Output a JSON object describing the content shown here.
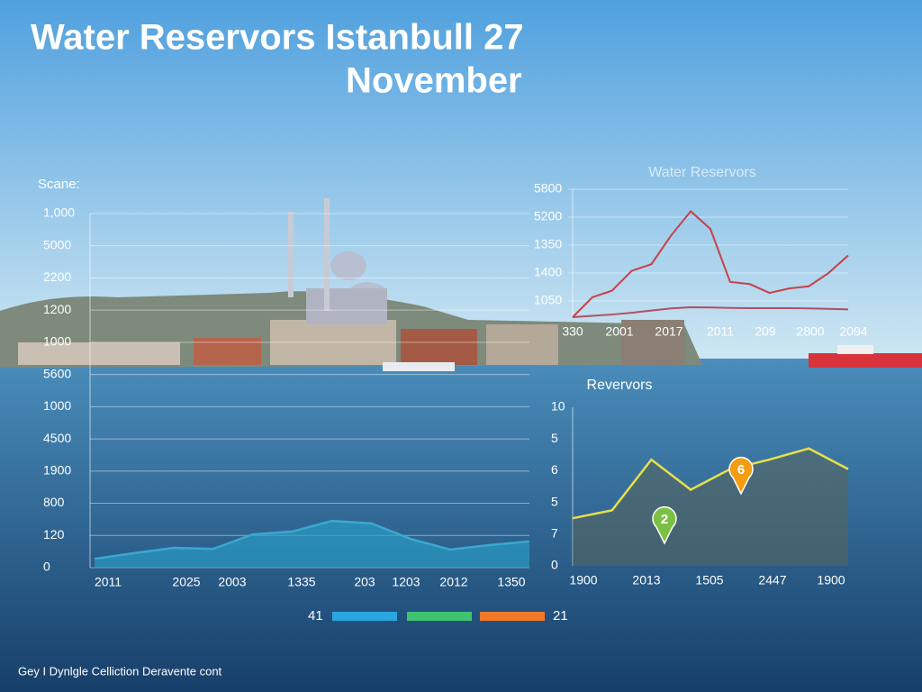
{
  "title": [
    "Water Reservors Istanbull 27",
    "November"
  ],
  "footer": "Gey I Dynlgle Celliction Deravente cont",
  "legend": {
    "left": "41",
    "right": "21",
    "colors": [
      "#2aa6e0",
      "#3ec46d",
      "#f07a2a"
    ]
  },
  "chart_data": [
    {
      "type": "area",
      "y_label": "Scane:",
      "color": "#3aa8cf",
      "y_labels": [
        "1,000",
        "5000",
        "2200",
        "1200",
        "1000",
        "5600",
        "1000",
        "4500",
        "1900",
        "800",
        "120",
        "0"
      ],
      "x_labels": [
        "2011",
        "2025",
        "2003",
        "1335",
        "203",
        "1203",
        "2012",
        "1350"
      ],
      "ylim": [
        0,
        1000
      ],
      "grid": true,
      "values": [
        25,
        41,
        56,
        53,
        94,
        102,
        132,
        125,
        81,
        51,
        64,
        74
      ]
    },
    {
      "type": "line",
      "title": "Water Reservors",
      "y_labels": [
        "5800",
        "5200",
        "1350",
        "1400",
        "1050"
      ],
      "x_labels": [
        "330",
        "2001",
        "2017",
        "2011",
        "209",
        "2800",
        "2094"
      ],
      "ylim": [
        0,
        5800
      ],
      "grid": true,
      "series": [
        {
          "color": "#c8404a",
          "values": [
            0,
            900,
            1200,
            2100,
            2400,
            3700,
            4800,
            4000,
            1600,
            1500,
            1100,
            1300,
            1400,
            2000,
            2800
          ]
        },
        {
          "color": "#b05060",
          "values": [
            0,
            60,
            120,
            200,
            300,
            400,
            450,
            440,
            420,
            410,
            410,
            410,
            400,
            380,
            350
          ]
        }
      ]
    },
    {
      "type": "area",
      "title": "Revervors",
      "color": "#e6e04a",
      "y_labels": [
        "10",
        "5",
        "6",
        "5",
        "7",
        "0"
      ],
      "x_labels": [
        "1900",
        "2013",
        "1505",
        "2447",
        "1900"
      ],
      "ylim": [
        0,
        10
      ],
      "grid": false,
      "values": [
        3.0,
        3.5,
        6.7,
        4.8,
        6.1,
        6.7,
        7.4,
        6.1
      ],
      "annotations": [
        {
          "text": "2",
          "color": "#7bc043"
        },
        {
          "text": "6",
          "color": "#f39c12"
        }
      ]
    }
  ]
}
